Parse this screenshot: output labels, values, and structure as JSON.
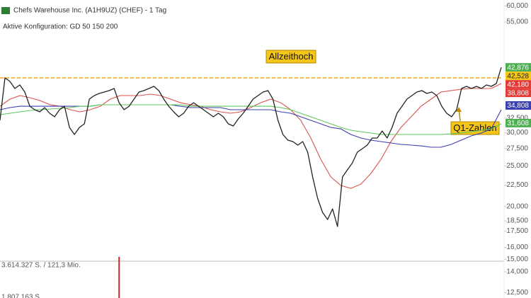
{
  "chart_data": {
    "type": "line",
    "title": "Chefs Warehouse Inc. (A1H9UZ) (CHEF) - 1 Tag",
    "subtitle": "Aktive Konfiguration: GD 50 150 200",
    "log_scale": true,
    "grid": false,
    "ylim": [
      12.13,
      62
    ],
    "yticks": [
      {
        "value": 60,
        "label": "60,000"
      },
      {
        "value": 55,
        "label": "55,000"
      },
      {
        "value": 32.5,
        "label": "32,500"
      },
      {
        "value": 30,
        "label": "30,000"
      },
      {
        "value": 27.5,
        "label": "27,500"
      },
      {
        "value": 25,
        "label": "25,000"
      },
      {
        "value": 22.5,
        "label": "22,500"
      },
      {
        "value": 20,
        "label": "20,000"
      },
      {
        "value": 18.5,
        "label": "18,500"
      },
      {
        "value": 17.5,
        "label": "17,500"
      },
      {
        "value": 16,
        "label": "16,000"
      },
      {
        "value": 15,
        "label": "15,000"
      },
      {
        "value": 14,
        "label": "14,000"
      },
      {
        "value": 12.5,
        "label": "12,500"
      }
    ],
    "series": [
      {
        "color": "#222222",
        "values": [
          32.08,
          40.48,
          39.71,
          38.19,
          38.94,
          37.46,
          34.66,
          34.0,
          33.61,
          34.4,
          33.35,
          32.71,
          34.0,
          34.66,
          30.86,
          29.69,
          30.86,
          31.47,
          36.04,
          36.74,
          37.17,
          37.46,
          37.75,
          38.19,
          35.34,
          34.0,
          34.66,
          36.04,
          37.46,
          37.75,
          38.19,
          38.64,
          37.75,
          36.04,
          34.66,
          33.61,
          32.71,
          33.35,
          34.66,
          35.34,
          34.66,
          34.0,
          33.35,
          32.71,
          33.35,
          32.71,
          31.47,
          31.1,
          32.33,
          33.35,
          34.66,
          36.04,
          36.74,
          37.46,
          37.75,
          36.04,
          32.08,
          29.69,
          28.78,
          28.56,
          28.01,
          28.56,
          26.95,
          23.53,
          20.94,
          19.38,
          18.64,
          19.76,
          17.94,
          23.53,
          24.46,
          25.42,
          26.95,
          27.47,
          28.01,
          29.12,
          29.12,
          30.27,
          29.12,
          30.86,
          33.35,
          34.66,
          36.04,
          36.74,
          37.46,
          37.75,
          37.17,
          37.46,
          36.74,
          34.66,
          33.35,
          32.71,
          34.0,
          38.19,
          38.64,
          38.19,
          38.64,
          38.19,
          38.94,
          38.64,
          39.24,
          42.876
        ]
      },
      {
        "color": "#d9534f",
        "values": [
          34.66,
          36.04,
          36.74,
          36.31,
          35.75,
          34.94,
          34.66,
          34.0,
          33.61,
          34.0,
          34.66,
          36.04,
          36.74,
          36.74,
          36.74,
          37.03,
          36.74,
          36.04,
          35.34,
          34.94,
          34.66,
          34.0,
          33.61,
          33.35,
          33.61,
          34.4,
          35.34,
          36.04,
          35.34,
          34.0,
          32.08,
          29.12,
          25.92,
          23.53,
          22.46,
          22.11,
          22.63,
          23.99,
          25.92,
          28.56,
          30.86,
          32.71,
          34.66,
          36.04,
          37.46,
          37.75,
          38.04,
          38.19,
          38.19,
          38.19,
          39.24
        ]
      },
      {
        "color": "#3a3fb0",
        "values": [
          34.0,
          34.4,
          34.66,
          34.66,
          34.66,
          34.66,
          34.66,
          34.66,
          34.66,
          34.66,
          34.94,
          34.94,
          34.94,
          34.94,
          34.94,
          34.94,
          34.94,
          34.94,
          34.66,
          34.4,
          34.4,
          34.4,
          34.4,
          34.0,
          34.0,
          34.0,
          34.0,
          34.0,
          33.61,
          33.35,
          32.71,
          32.08,
          31.47,
          30.86,
          30.62,
          29.69,
          29.12,
          28.78,
          28.56,
          28.34,
          28.12,
          28.01,
          27.9,
          27.69,
          27.69,
          28.12,
          28.78,
          29.46,
          29.92,
          30.62,
          34.0
        ]
      },
      {
        "color": "#5cc85c",
        "values": [
          33.09,
          33.35,
          33.61,
          33.87,
          34.0,
          34.14,
          34.27,
          34.4,
          34.66,
          34.66,
          34.94,
          34.94,
          34.94,
          34.94,
          34.94,
          34.94,
          34.94,
          34.94,
          34.94,
          34.66,
          34.66,
          34.66,
          34.66,
          34.66,
          34.66,
          34.66,
          34.66,
          34.66,
          34.4,
          34.0,
          33.35,
          32.71,
          32.08,
          31.47,
          30.86,
          30.39,
          30.15,
          29.92,
          29.69,
          29.69,
          29.69,
          29.69,
          29.69,
          29.69,
          29.69,
          29.8,
          29.92,
          30.15,
          30.39,
          30.62,
          31.47
        ]
      }
    ],
    "price_labels": [
      {
        "value": 42.876,
        "label": "42,876",
        "color": "#4caf50"
      },
      {
        "value": 42.528,
        "label": "42,528",
        "color": "#f5c518"
      },
      {
        "value": 42.18,
        "label": "42,180",
        "color": "#e53935"
      },
      {
        "value": 38.808,
        "label": "38,808",
        "color": "#e53935"
      },
      {
        "value": 34.808,
        "label": "34,808",
        "color": "#3a3fb0"
      },
      {
        "value": 31.608,
        "label": "31,608",
        "color": "#4caf50"
      }
    ],
    "ath_line": {
      "value": 40.48,
      "color": "#f0a020"
    },
    "annotations": [
      "Allzeithoch",
      "Q1-Zahlen"
    ],
    "volume": {
      "labels": [
        "3.614.327 S. / 121,3 Mio.",
        "1.807.163 S."
      ],
      "scale": [
        3614327,
        1807163
      ],
      "bars": [
        {
          "index": 24,
          "value": 4100000,
          "color": "#c62828"
        }
      ]
    }
  }
}
